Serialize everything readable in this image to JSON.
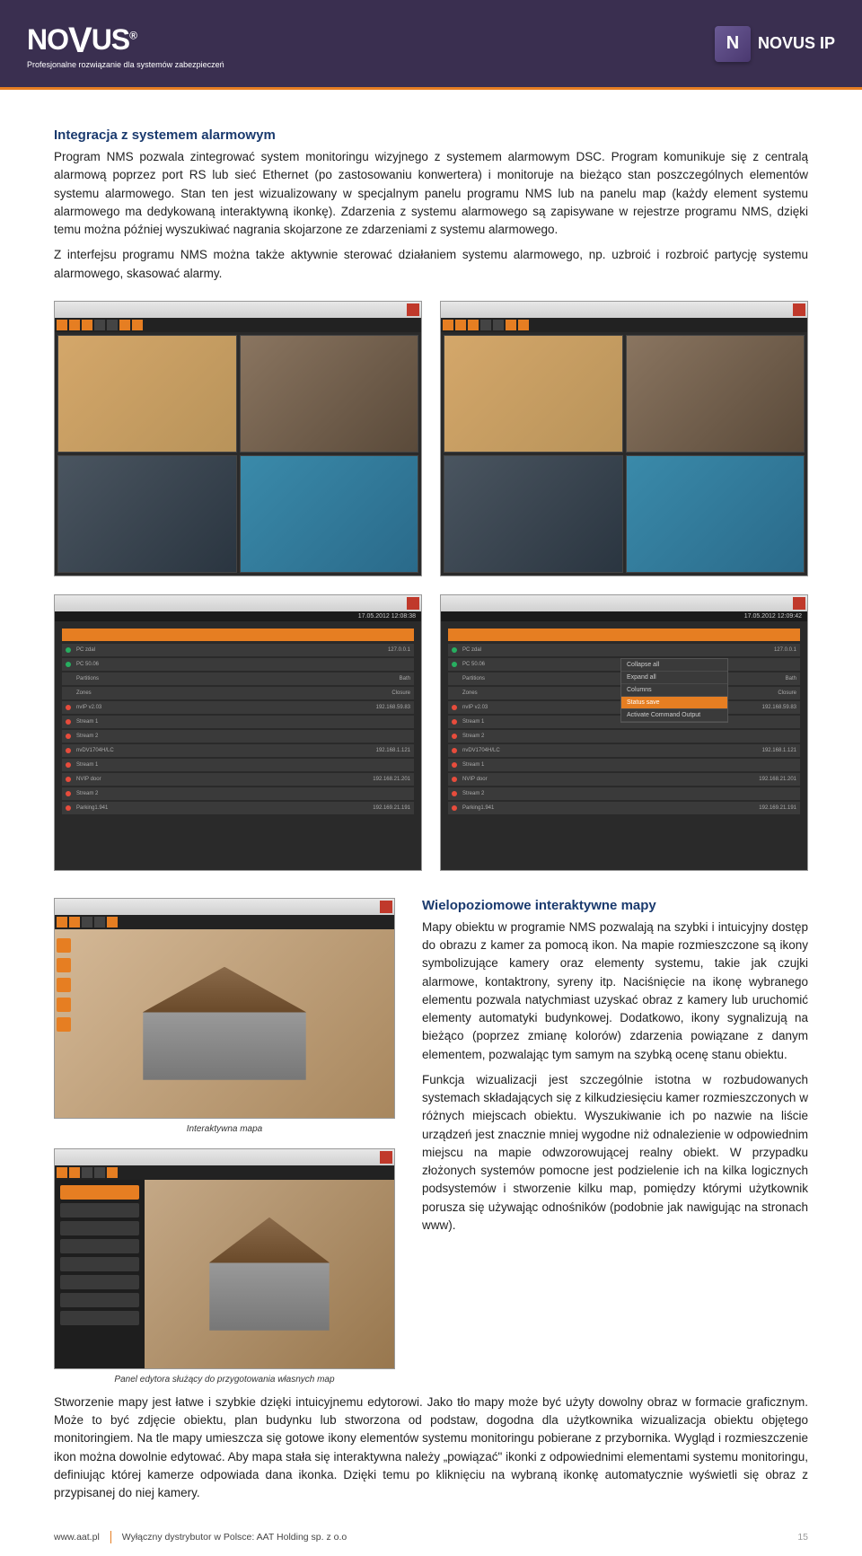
{
  "header": {
    "logo_main": "NOVUS",
    "logo_reg": "®",
    "tagline": "Profesjonalne rozwiązanie dla systemów zabezpieczeń",
    "badge_text": "NOVUS IP",
    "badge_icon": "N"
  },
  "section1": {
    "title": "Integracja z systemem alarmowym",
    "p1": "Program NMS pozwala zintegrować system monitoringu wizyjnego z systemem alarmowym DSC. Program komunikuje się z centralą alarmową poprzez port RS lub sieć Ethernet (po zastosowaniu konwertera) i monitoruje na bieżąco stan poszczególnych elementów systemu alarmowego. Stan ten jest wizualizowany w specjalnym panelu programu NMS lub na panelu map (każdy element systemu alarmowego ma dedykowaną interaktywną ikonkę). Zdarzenia z systemu alarmowego są zapisywane w rejestrze programu NMS, dzięki temu można później wyszukiwać nagrania skojarzone ze zdarzeniami z systemu alarmowego.",
    "p2": "Z interfejsu programu NMS można także aktywnie sterować działaniem systemu alarmowego, np. uzbroić i rozbroić partycję systemu alarmowego, skasować alarmy."
  },
  "screenshots": {
    "date1": "17.05.2012 12:08:38",
    "date2": "17.05.2012 12:09:42",
    "list_rows": [
      {
        "label": "PC zdal",
        "ip": "127.0.0.1",
        "status": "g"
      },
      {
        "label": "PC 50.06",
        "ip": "",
        "status": "g"
      },
      {
        "label": "Partitions",
        "ip": "Bath",
        "status": ""
      },
      {
        "label": "Zones",
        "ip": "Closure",
        "status": ""
      },
      {
        "label": "nvIP v2.03",
        "ip": "192.168.59.83",
        "status": "r"
      },
      {
        "label": "Stream 1",
        "ip": "",
        "status": "r"
      },
      {
        "label": "Stream 2",
        "ip": "",
        "status": "r"
      },
      {
        "label": "nvDV1704H/LC",
        "ip": "192.168.1.121",
        "status": "r"
      },
      {
        "label": "Stream 1",
        "ip": "",
        "status": "r"
      },
      {
        "label": "NVIP door",
        "ip": "192.168.21.201",
        "status": "r"
      },
      {
        "label": "Stream 2",
        "ip": "",
        "status": "r"
      },
      {
        "label": "Parking1.941",
        "ip": "192.169.21.191",
        "status": "r"
      }
    ],
    "ctx_menu": [
      "Collapse all",
      "Expand all",
      "Columns",
      "Status save",
      "Activate Command Output"
    ]
  },
  "section2": {
    "title": "Wielopoziomowe interaktywne mapy",
    "p1": "Mapy obiektu w programie NMS pozwalają na szybki i intuicyjny dostęp do obrazu z kamer za pomocą ikon. Na mapie rozmieszczone są ikony symbolizujące kamery oraz elementy systemu, takie jak czujki alarmowe, kontaktrony, syreny itp. Naciśnięcie na ikonę wybranego elementu pozwala natychmiast uzyskać obraz z kamery lub uruchomić elementy automatyki budynkowej. Dodatkowo, ikony sygnalizują na bieżąco (poprzez zmianę kolorów) zdarzenia powiązane z danym elementem, pozwalając tym samym na szybką ocenę stanu obiektu.",
    "p2": "Funkcja wizualizacji jest szczególnie istotna w rozbudowanych systemach składających się z kilkudziesięciu kamer rozmieszczonych w różnych miejscach obiektu. Wyszukiwanie ich po nazwie na liście urządzeń jest znacznie mniej wygodne niż odnalezienie w odpowiednim miejscu na mapie odwzorowującej realny obiekt. W przypadku złożonych systemów pomocne jest podzielenie ich na kilka logicznych podsystemów i stworzenie kilku map, pomiędzy którymi użytkownik porusza się używając odnośników (podobnie jak nawigując na stronach www).",
    "caption1": "Interaktywna mapa",
    "caption2": "Panel edytora służący do przygotowania własnych map"
  },
  "final_para": "Stworzenie mapy jest łatwe i szybkie dzięki intuicyjnemu edytorowi. Jako tło mapy może być użyty dowolny obraz w formacie graficznym. Może to być zdjęcie obiektu, plan budynku lub stworzona od podstaw, dogodna dla użytkownika wizualizacja obiektu objętego monitoringiem. Na tle mapy umieszcza się gotowe ikony elementów systemu monitoringu pobierane z przybornika. Wygląd i rozmieszczenie ikon można dowolnie edytować. Aby mapa stała się interaktywna należy „powiązać\" ikonki z odpowiednimi elementami systemu monitoringu, definiując której kamerze odpowiada dana ikonka. Dzięki temu po kliknięciu na wybraną ikonkę automatycznie wyświetli się obraz z przypisanej do niej kamery.",
  "footer": {
    "url": "www.aat.pl",
    "distributor": "Wyłączny dystrybutor w Polsce: AAT Holding sp. z o.o",
    "page": "15"
  }
}
